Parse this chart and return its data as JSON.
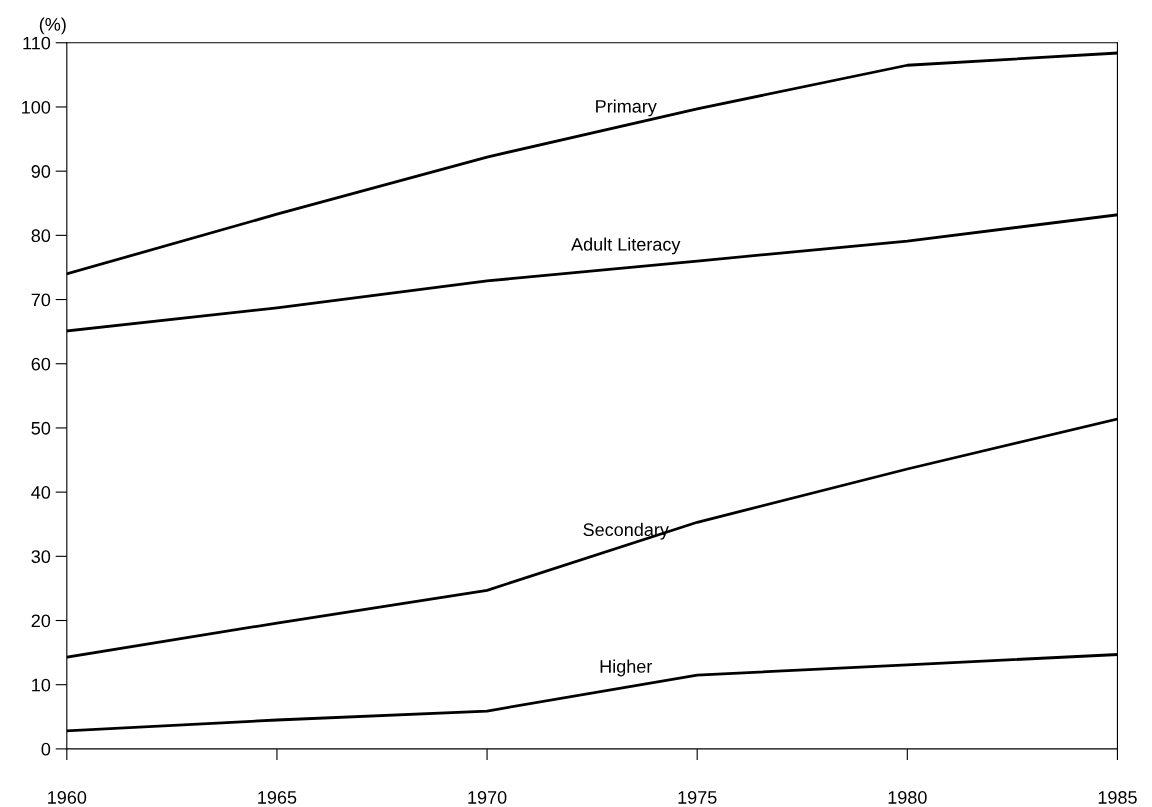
{
  "chart_data": {
    "type": "line",
    "ylabel": "(%)",
    "x": [
      1960,
      1965,
      1970,
      1975,
      1980,
      1985
    ],
    "series": [
      {
        "name": "Primary",
        "color": "#000000",
        "values": [
          74.0,
          83.3,
          92.2,
          99.7,
          106.5,
          108.4
        ]
      },
      {
        "name": "Adult Literacy",
        "color": "#000000",
        "values": [
          65.1,
          68.7,
          72.9,
          76.0,
          79.1,
          83.2
        ]
      },
      {
        "name": "Secondary",
        "color": "#000000",
        "values": [
          14.3,
          19.6,
          24.7,
          35.3,
          43.6,
          51.4
        ]
      },
      {
        "name": "Higher",
        "color": "#000000",
        "values": [
          2.8,
          4.5,
          5.9,
          11.5,
          13.1,
          14.7
        ]
      }
    ],
    "xlim": [
      1960,
      1985
    ],
    "xticks": [
      1960,
      1965,
      1970,
      1975,
      1980,
      1985
    ],
    "ylim": [
      0,
      110
    ],
    "yticks": [
      0,
      10,
      20,
      30,
      40,
      50,
      60,
      70,
      80,
      90,
      100,
      110
    ],
    "grid": false,
    "legend": false,
    "marker": "none",
    "line_style": "solid"
  }
}
